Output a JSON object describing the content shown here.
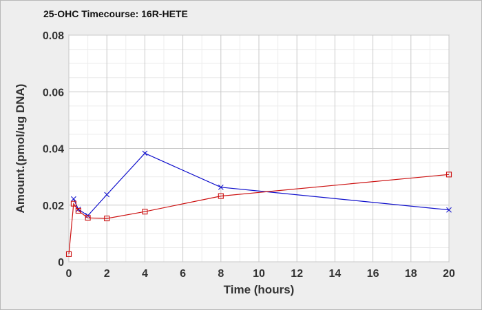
{
  "chart_data": {
    "type": "line",
    "title": "25-OHC Timecourse: 16R-HETE",
    "xlabel": "Time (hours)",
    "ylabel": "Amount.(pmol/ug DNA)",
    "xlim": [
      0,
      20
    ],
    "ylim": [
      0,
      0.08
    ],
    "xticks": [
      0,
      2,
      4,
      6,
      8,
      10,
      12,
      14,
      16,
      18,
      20
    ],
    "yticks": [
      0,
      0.02,
      0.04,
      0.06,
      0.08
    ],
    "ytick_labels": [
      "0",
      "0.02",
      "0.04",
      "0.06",
      "0.08"
    ],
    "grid": true,
    "legend": "none",
    "series": [
      {
        "color": "#1010cc",
        "marker": "x",
        "x": [
          0.25,
          0.5,
          1,
          2,
          4,
          8,
          20
        ],
        "y": [
          0.0222,
          0.0185,
          0.0163,
          0.0237,
          0.0383,
          0.0263,
          0.0183
        ]
      },
      {
        "color": "#cc1010",
        "marker": "square",
        "x": [
          0,
          0.25,
          0.5,
          1,
          2,
          4,
          8,
          20
        ],
        "y": [
          0.0027,
          0.0205,
          0.018,
          0.0155,
          0.0153,
          0.0177,
          0.0232,
          0.0308
        ]
      }
    ]
  }
}
